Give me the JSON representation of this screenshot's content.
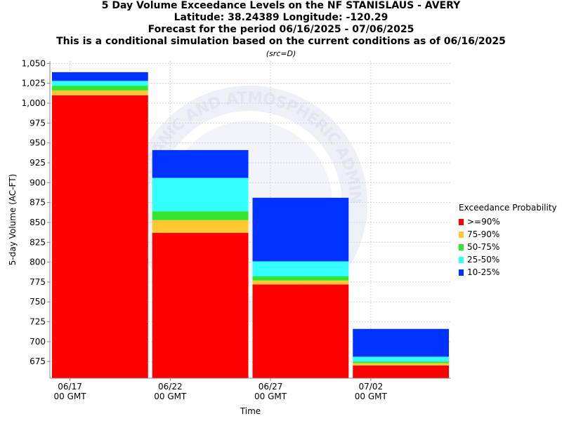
{
  "titles": [
    "5 Day Volume Exceedance Levels on the NF STANISLAUS - AVERY",
    "Latitude: 38.24389 Longitude: -120.29",
    "Forecast for the period 06/16/2025 - 07/06/2025",
    "This is a conditional simulation based on the current conditions as of 06/16/2025"
  ],
  "src_note": "(src=D)",
  "watermark_text": "OCEANIC AND ATMOSPHERIC ADMINISTRATION",
  "colors": {
    "ge90": "#ff0000",
    "p75_90": "#ffc832",
    "p50_75": "#32e632",
    "p25_50": "#32ffff",
    "p10_25": "#0032ff"
  },
  "chart_data": {
    "type": "bar",
    "stacked": true,
    "xlabel": "Time",
    "ylabel": "5-day Volume (AC-FT)",
    "ylim": [
      654,
      1053
    ],
    "yticks": [
      675,
      700,
      725,
      750,
      775,
      800,
      825,
      850,
      875,
      900,
      925,
      950,
      975,
      1000,
      1025,
      1050
    ],
    "ytick_labels": [
      "675",
      "700",
      "725",
      "750",
      "775",
      "800",
      "825",
      "850",
      "875",
      "900",
      "925",
      "950",
      "975",
      "1,000",
      "1,025",
      "1,050"
    ],
    "xticks": [
      {
        "date": "2025-06-17",
        "label": "06/17",
        "sublabel": "00 GMT"
      },
      {
        "date": "2025-06-22",
        "label": "06/22",
        "sublabel": "00 GMT"
      },
      {
        "date": "2025-06-27",
        "label": "06/27",
        "sublabel": "00 GMT"
      },
      {
        "date": "2025-07-02",
        "label": "07/02",
        "sublabel": "00 GMT"
      }
    ],
    "x_range": [
      "2025-06-16",
      "2025-07-06"
    ],
    "grid": true,
    "legend_title": "Exceedance Probability",
    "legend_position": "right",
    "series": [
      {
        "name": ">=90%",
        "color_key": "ge90"
      },
      {
        "name": "75-90%",
        "color_key": "p75_90"
      },
      {
        "name": "50-75%",
        "color_key": "p50_75"
      },
      {
        "name": "25-50%",
        "color_key": "p25_50"
      },
      {
        "name": "10-25%",
        "color_key": "p10_25"
      }
    ],
    "bars": [
      {
        "start": "2025-06-16",
        "end": "2025-06-21",
        "levels": [
          1010,
          1016,
          1022,
          1028,
          1039
        ]
      },
      {
        "start": "2025-06-21",
        "end": "2025-06-26",
        "levels": [
          837,
          853,
          864,
          906,
          941
        ]
      },
      {
        "start": "2025-06-26",
        "end": "2025-07-01",
        "levels": [
          772,
          777,
          782,
          801,
          881
        ]
      },
      {
        "start": "2025-07-01",
        "end": "2025-07-06",
        "levels": [
          670,
          673,
          675,
          681,
          716
        ]
      }
    ]
  }
}
